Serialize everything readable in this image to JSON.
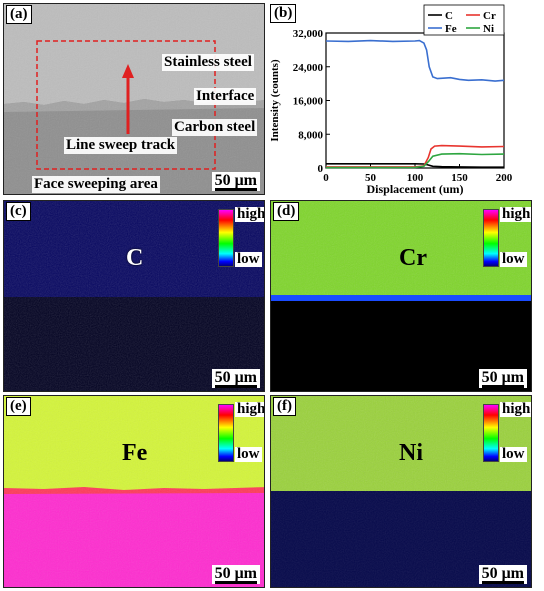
{
  "panels": {
    "a": {
      "label": "(a)",
      "labels": {
        "stainless": "Stainless steel",
        "interface": "Interface",
        "carbon": "Carbon steel",
        "track": "Line sweep track",
        "area": "Face sweeping area"
      },
      "scale": "50 μm"
    },
    "b": {
      "label": "(b)"
    },
    "c": {
      "label": "(c)",
      "element": "C",
      "cb_high": "high",
      "cb_low": "low",
      "scale": "50 μm"
    },
    "d": {
      "label": "(d)",
      "element": "Cr",
      "cb_high": "high",
      "cb_low": "low",
      "scale": "50 μm"
    },
    "e": {
      "label": "(e)",
      "element": "Fe",
      "cb_high": "high",
      "cb_low": "low",
      "scale": "50 μm"
    },
    "f": {
      "label": "(f)",
      "element": "Ni",
      "cb_high": "high",
      "cb_low": "low",
      "scale": "50 μm"
    }
  },
  "chart_data": {
    "type": "line",
    "xlabel": "Displacement (um)",
    "ylabel": "Intensity (counts)",
    "xlim": [
      0,
      200
    ],
    "ylim": [
      0,
      32000
    ],
    "xticks": [
      "0",
      "50",
      "100",
      "150",
      "200"
    ],
    "yticks": [
      "0",
      "8,000",
      "16,000",
      "24,000",
      "32,000"
    ],
    "legend_placement": "top-right",
    "series": [
      {
        "name": "C",
        "color": "#000000",
        "x": [
          0,
          50,
          100,
          110,
          115,
          120,
          130,
          150,
          175,
          200
        ],
        "y": [
          1000,
          1000,
          1000,
          950,
          700,
          400,
          300,
          250,
          200,
          200
        ]
      },
      {
        "name": "Cr",
        "color": "#e8352f",
        "x": [
          0,
          50,
          100,
          110,
          115,
          118,
          122,
          130,
          150,
          175,
          200
        ],
        "y": [
          250,
          250,
          250,
          500,
          2500,
          4500,
          5200,
          5300,
          5200,
          5000,
          5100
        ]
      },
      {
        "name": "Fe",
        "color": "#3a6fd0",
        "x": [
          0,
          25,
          50,
          75,
          100,
          105,
          110,
          113,
          116,
          120,
          125,
          140,
          150,
          160,
          175,
          190,
          200
        ],
        "y": [
          30100,
          30000,
          30200,
          30000,
          30100,
          30200,
          29600,
          28000,
          24000,
          21600,
          21200,
          21400,
          21000,
          20800,
          20900,
          20600,
          20800
        ]
      },
      {
        "name": "Ni",
        "color": "#2ea640",
        "x": [
          0,
          50,
          100,
          110,
          115,
          120,
          130,
          150,
          175,
          200
        ],
        "y": [
          100,
          100,
          150,
          400,
          1500,
          2800,
          3300,
          3400,
          3200,
          3300
        ]
      }
    ]
  }
}
